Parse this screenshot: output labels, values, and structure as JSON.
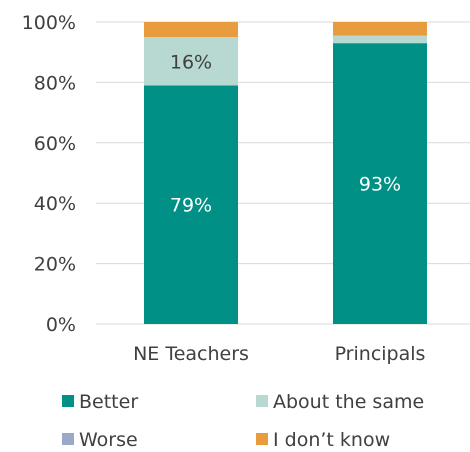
{
  "chart_data": {
    "type": "bar",
    "stacked": true,
    "categories": [
      "NE Teachers",
      "Principals"
    ],
    "series": [
      {
        "name": "Better",
        "values": [
          79,
          93
        ],
        "color": "#009085"
      },
      {
        "name": "About the same",
        "values": [
          16,
          2.5
        ],
        "color": "#b8d9d1"
      },
      {
        "name": "Worse",
        "values": [
          0,
          0
        ],
        "color": "#9ba8c8"
      },
      {
        "name": "I don’t know",
        "values": [
          5,
          4.5
        ],
        "color": "#e99c3f"
      }
    ],
    "data_labels": [
      {
        "category": "NE Teachers",
        "series": "Better",
        "text": "79%",
        "color": "#ffffff"
      },
      {
        "category": "NE Teachers",
        "series": "About the same",
        "text": "16%",
        "color": "#404040"
      },
      {
        "category": "Principals",
        "series": "Better",
        "text": "93%",
        "color": "#ffffff"
      }
    ],
    "ylim": [
      0,
      100
    ],
    "yticks": [
      "0%",
      "20%",
      "40%",
      "60%",
      "80%",
      "100%"
    ],
    "ytick_values": [
      0,
      20,
      40,
      60,
      80,
      100
    ],
    "grid": true,
    "legend_position": "bottom",
    "title": "",
    "xlabel": "",
    "ylabel": ""
  }
}
